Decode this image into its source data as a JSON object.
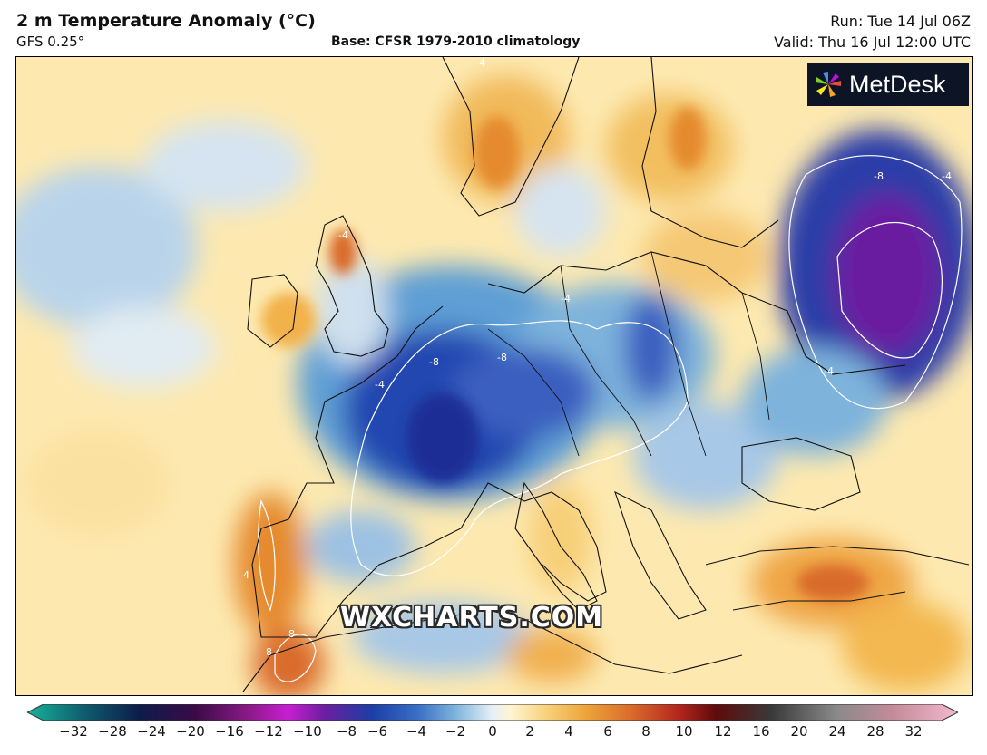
{
  "header": {
    "title": "2 m Temperature Anomaly (°C)",
    "model": "GFS 0.25°",
    "base": "Base: CFSR 1979-2010 climatology",
    "run": "Run: Tue 14 Jul 06Z",
    "valid": "Valid: Thu 16 Jul 12:00 UTC"
  },
  "logo": {
    "text": "MetDesk"
  },
  "watermark": "WXCHARTS.COM",
  "colorbar": {
    "ticks": [
      "−32",
      "−28",
      "−24",
      "−20",
      "−16",
      "−12",
      "−10",
      "−8",
      "−6",
      "−4",
      "−2",
      "0",
      "2",
      "4",
      "6",
      "8",
      "10",
      "12",
      "16",
      "20",
      "24",
      "28",
      "32"
    ]
  },
  "contour_labels": [
    "-4",
    "-8",
    "-4",
    "-8",
    "-8",
    "4",
    "8",
    "-4",
    "4",
    "8",
    "-4",
    "-4"
  ],
  "colors": {
    "land_base": "#fde9b0",
    "cold_light": "#c6dcee",
    "cold_mid": "#5d9fd3",
    "cold_deep": "#1c3ea6",
    "cold_violet": "#5a1a8e",
    "warm_light": "#f7cf78",
    "warm_mid": "#eea43a",
    "warm_deep": "#d96a2a"
  }
}
